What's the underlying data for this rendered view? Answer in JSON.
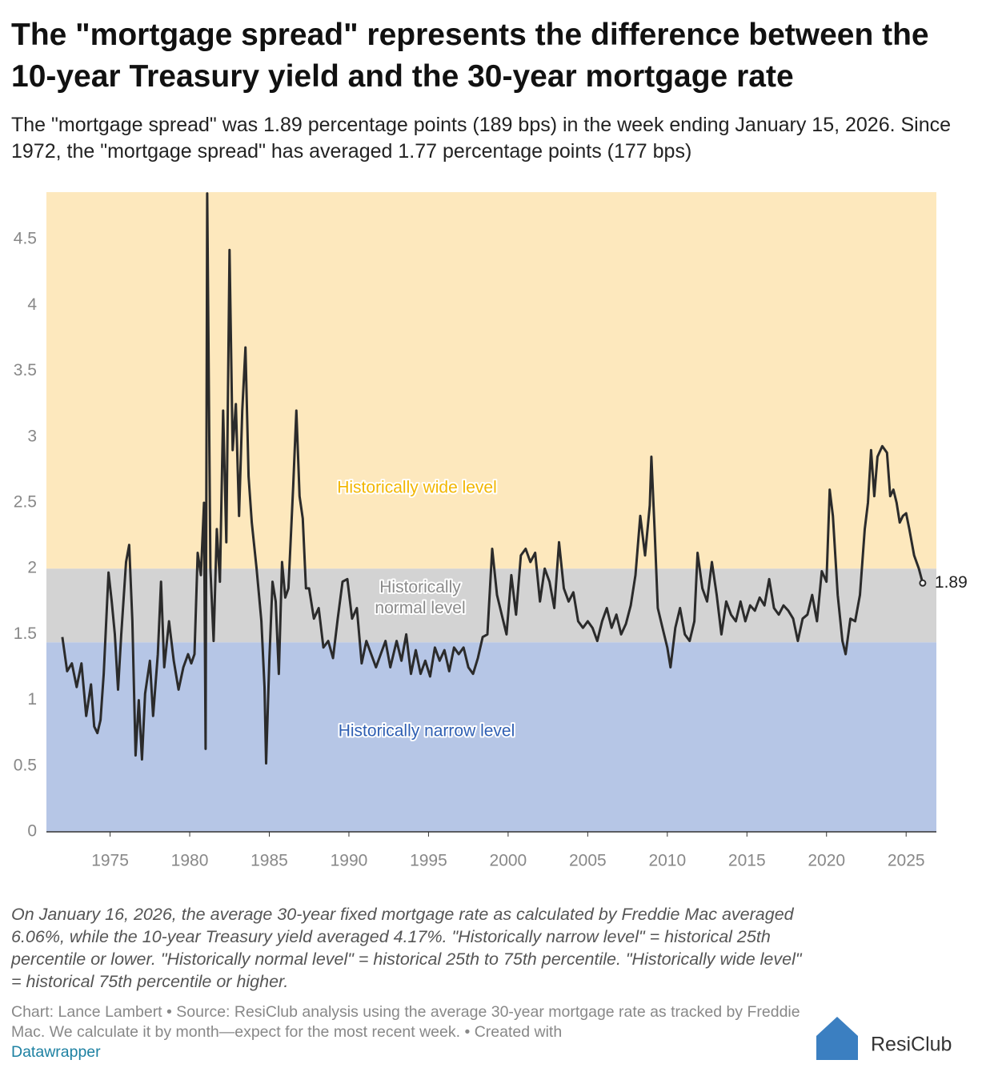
{
  "chart_data": {
    "type": "line",
    "title": "The \"mortgage spread\" represents the difference between the 10-year Treasury yield and the 30-year mortgage rate",
    "subtitle": "The \"mortgage spread\" was 1.89 percentage points (189 bps) in the week ending January 15, 2026. Since 1972, the \"mortgage spread\" has averaged 1.77 percentage points (177 bps)",
    "note": "On January 16, 2026, the average 30-year fixed mortgage rate as calculated by Freddie Mac averaged 6.06%, while the 10-year Treasury yield averaged 4.17%. \"Historically narrow level\" = historical 25th percentile or lower. \"Historically normal level\" = historical 25th to 75th percentile. \"Historically wide level\" = historical 75th percentile or higher.",
    "source": "Chart: Lance Lambert • Source: ResiClub analysis using the average 30-year mortgage rate as tracked by Freddie Mac. We calculate it by month—expect for the most recent week.  • Created with",
    "credit_link": "Datawrapper",
    "logo": "ResiClub",
    "color": "#2b2b2b",
    "bands": [
      {
        "name": "Historically narrow level",
        "from": 0,
        "to": 1.44,
        "color": "#b6c6e6",
        "label_color": "#2f5fb3"
      },
      {
        "name": "Historically normal level",
        "from": 1.44,
        "to": 2.0,
        "color": "#d3d3d3",
        "label_color": "#8a8a8a"
      },
      {
        "name": "Historically wide level",
        "from": 2.0,
        "to": 4.86,
        "color": "#fde8bd",
        "label_color": "#f2b600"
      }
    ],
    "xlim": [
      1971,
      2026.9
    ],
    "ylim": [
      0,
      4.86
    ],
    "xticks": [
      1975,
      1980,
      1985,
      1990,
      1995,
      2000,
      2005,
      2010,
      2015,
      2020,
      2025
    ],
    "yticks": [
      0,
      0.5,
      1,
      1.5,
      2,
      2.5,
      3,
      3.5,
      4,
      4.5
    ],
    "x": [
      1972.0,
      1972.3,
      1972.6,
      1972.9,
      1973.2,
      1973.5,
      1973.8,
      1974.0,
      1974.2,
      1974.4,
      1974.6,
      1974.9,
      1975.1,
      1975.3,
      1975.5,
      1975.7,
      1976.0,
      1976.2,
      1976.4,
      1976.6,
      1976.8,
      1977.0,
      1977.2,
      1977.5,
      1977.7,
      1978.0,
      1978.2,
      1978.4,
      1978.7,
      1979.0,
      1979.3,
      1979.6,
      1979.9,
      1980.1,
      1980.3,
      1980.5,
      1980.7,
      1980.9,
      1981.0,
      1981.1,
      1981.3,
      1981.5,
      1981.7,
      1981.9,
      1982.1,
      1982.3,
      1982.5,
      1982.7,
      1982.9,
      1983.1,
      1983.3,
      1983.5,
      1983.7,
      1983.9,
      1984.2,
      1984.5,
      1984.7,
      1984.8,
      1985.0,
      1985.2,
      1985.4,
      1985.6,
      1985.8,
      1986.0,
      1986.2,
      1986.5,
      1986.7,
      1986.9,
      1987.1,
      1987.3,
      1987.5,
      1987.8,
      1988.1,
      1988.4,
      1988.7,
      1989.0,
      1989.3,
      1989.6,
      1989.9,
      1990.2,
      1990.5,
      1990.8,
      1991.1,
      1991.4,
      1991.7,
      1992.0,
      1992.3,
      1992.6,
      1993.0,
      1993.3,
      1993.6,
      1993.9,
      1994.2,
      1994.5,
      1994.8,
      1995.1,
      1995.4,
      1995.7,
      1996.0,
      1996.3,
      1996.6,
      1996.9,
      1997.2,
      1997.5,
      1997.8,
      1998.1,
      1998.4,
      1998.7,
      1999.0,
      1999.3,
      1999.6,
      1999.9,
      2000.2,
      2000.5,
      2000.8,
      2001.1,
      2001.4,
      2001.7,
      2002.0,
      2002.3,
      2002.6,
      2002.9,
      2003.2,
      2003.5,
      2003.8,
      2004.1,
      2004.4,
      2004.7,
      2005.0,
      2005.3,
      2005.6,
      2005.9,
      2006.2,
      2006.5,
      2006.8,
      2007.1,
      2007.4,
      2007.7,
      2008.0,
      2008.3,
      2008.6,
      2008.9,
      2009.0,
      2009.2,
      2009.4,
      2009.7,
      2010.0,
      2010.2,
      2010.5,
      2010.8,
      2011.1,
      2011.4,
      2011.7,
      2011.9,
      2012.2,
      2012.5,
      2012.8,
      2013.1,
      2013.4,
      2013.7,
      2014.0,
      2014.3,
      2014.6,
      2014.9,
      2015.2,
      2015.5,
      2015.8,
      2016.1,
      2016.4,
      2016.7,
      2017.0,
      2017.3,
      2017.6,
      2017.9,
      2018.2,
      2018.5,
      2018.8,
      2019.1,
      2019.4,
      2019.7,
      2020.0,
      2020.2,
      2020.4,
      2020.7,
      2021.0,
      2021.2,
      2021.5,
      2021.8,
      2022.1,
      2022.4,
      2022.6,
      2022.8,
      2023.0,
      2023.2,
      2023.5,
      2023.8,
      2024.0,
      2024.2,
      2024.4,
      2024.6,
      2024.8,
      2025.0,
      2025.2,
      2025.5,
      2025.8,
      2026.04
    ],
    "values": [
      1.48,
      1.22,
      1.28,
      1.1,
      1.28,
      0.88,
      1.12,
      0.8,
      0.75,
      0.85,
      1.2,
      1.97,
      1.75,
      1.5,
      1.08,
      1.5,
      2.05,
      2.18,
      1.6,
      0.58,
      1.0,
      0.55,
      1.05,
      1.3,
      0.88,
      1.35,
      1.9,
      1.25,
      1.6,
      1.3,
      1.08,
      1.25,
      1.35,
      1.28,
      1.35,
      2.12,
      1.95,
      2.5,
      0.63,
      4.85,
      2.0,
      1.45,
      2.3,
      1.9,
      3.2,
      2.2,
      4.42,
      2.9,
      3.25,
      2.4,
      3.2,
      3.68,
      2.7,
      2.35,
      2.0,
      1.6,
      1.1,
      0.52,
      1.3,
      1.9,
      1.75,
      1.2,
      2.05,
      1.78,
      1.85,
      2.62,
      3.2,
      2.55,
      2.38,
      1.85,
      1.85,
      1.62,
      1.7,
      1.4,
      1.45,
      1.32,
      1.62,
      1.9,
      1.92,
      1.62,
      1.7,
      1.28,
      1.45,
      1.35,
      1.25,
      1.35,
      1.45,
      1.25,
      1.45,
      1.3,
      1.5,
      1.2,
      1.38,
      1.2,
      1.3,
      1.18,
      1.4,
      1.3,
      1.38,
      1.22,
      1.4,
      1.35,
      1.4,
      1.25,
      1.2,
      1.32,
      1.48,
      1.5,
      2.15,
      1.8,
      1.65,
      1.5,
      1.95,
      1.65,
      2.1,
      2.15,
      2.05,
      2.12,
      1.75,
      2.0,
      1.9,
      1.7,
      2.2,
      1.85,
      1.75,
      1.82,
      1.6,
      1.55,
      1.6,
      1.55,
      1.45,
      1.6,
      1.7,
      1.55,
      1.65,
      1.5,
      1.58,
      1.72,
      1.95,
      2.4,
      2.1,
      2.48,
      2.85,
      2.3,
      1.7,
      1.55,
      1.4,
      1.25,
      1.55,
      1.7,
      1.5,
      1.45,
      1.6,
      2.12,
      1.85,
      1.75,
      2.05,
      1.8,
      1.5,
      1.75,
      1.65,
      1.6,
      1.75,
      1.6,
      1.72,
      1.68,
      1.78,
      1.72,
      1.92,
      1.7,
      1.65,
      1.72,
      1.68,
      1.62,
      1.45,
      1.62,
      1.65,
      1.8,
      1.6,
      1.98,
      1.9,
      2.6,
      2.4,
      1.8,
      1.45,
      1.35,
      1.62,
      1.6,
      1.8,
      2.3,
      2.5,
      2.9,
      2.55,
      2.85,
      2.93,
      2.88,
      2.55,
      2.6,
      2.5,
      2.35,
      2.4,
      2.42,
      2.3,
      2.1,
      2.0,
      1.89
    ]
  }
}
